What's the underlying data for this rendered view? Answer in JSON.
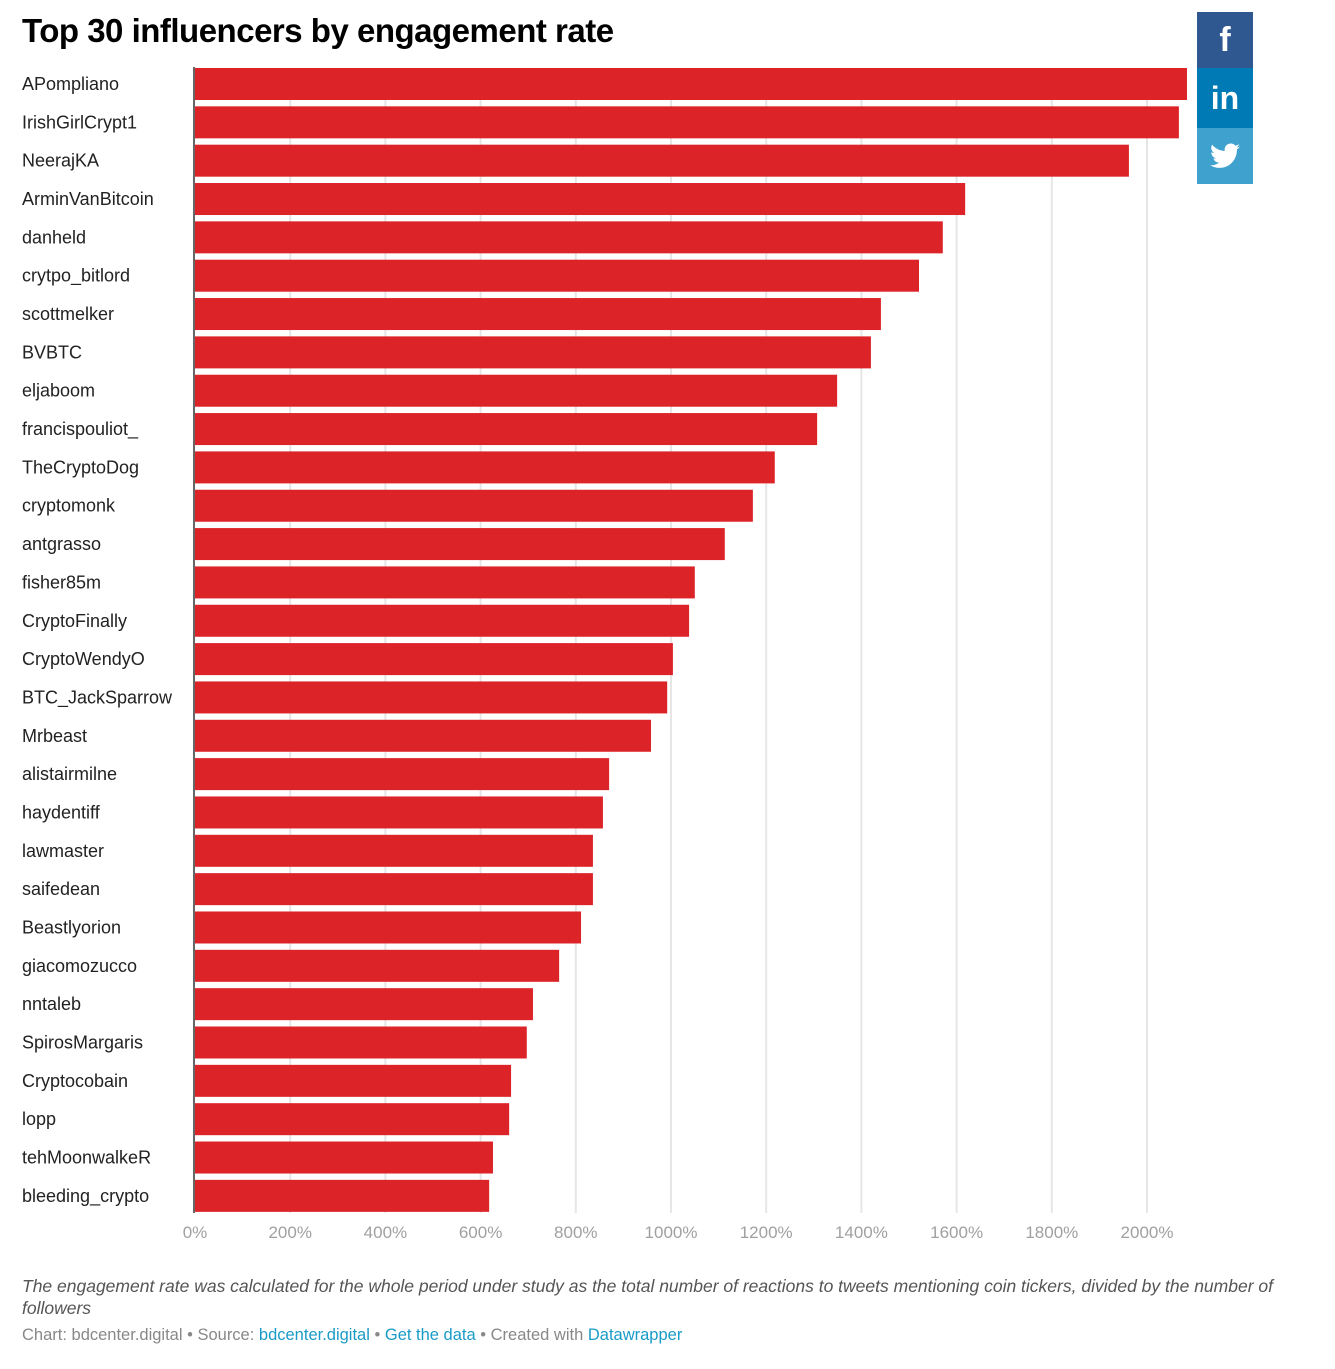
{
  "chart_data": {
    "type": "bar",
    "orientation": "horizontal",
    "title": "Top 30 influencers by engagement rate",
    "categories": [
      "APompliano",
      "IrishGirlCrypt1",
      "NeerajKA",
      "ArminVanBitcoin",
      "danheld",
      "crytpo_bitlord",
      "scottmelker",
      "BVBTC",
      "eljaboom",
      "francispouliot_",
      "TheCryptoDog",
      "cryptomonk",
      "antgrasso",
      "fisher85m",
      "CryptoFinally",
      "CryptoWendyO",
      "BTC_JackSparrow",
      "Mrbeast",
      "alistairmilne",
      "haydentiff",
      "lawmaster",
      "saifedean",
      "Beastlyorion",
      "giacomozucco",
      "nntaleb",
      "SpirosMargaris",
      "Cryptocobain",
      "lopp",
      "tehMoonwalkeR",
      "bleeding_crypto"
    ],
    "values": [
      2084,
      2067,
      1962,
      1618,
      1571,
      1521,
      1441,
      1420,
      1349,
      1307,
      1218,
      1172,
      1113,
      1050,
      1038,
      1004,
      992,
      958,
      870,
      857,
      836,
      836,
      811,
      765,
      710,
      697,
      664,
      660,
      626,
      618
    ],
    "unit": "%",
    "xlim": [
      0,
      2100
    ],
    "ticks": [
      "0%",
      "200%",
      "400%",
      "600%",
      "800%",
      "1000%",
      "1200%",
      "1400%",
      "1600%",
      "1800%",
      "2000%"
    ],
    "tick_values": [
      0,
      200,
      400,
      600,
      800,
      1000,
      1200,
      1400,
      1600,
      1800,
      2000
    ],
    "grid": true,
    "bar_color": "#dc2328",
    "grid_color": "#e6e6e6"
  },
  "note": "The engagement rate was calculated for the whole period under study as the total number of reactions to tweets mentioning coin tickers, divided by the number of followers",
  "footer": {
    "chart_prefix": "Chart: bdcenter.digital • Source: ",
    "source_link": "bdcenter.digital",
    "sep1": " • ",
    "get_data": "Get the data",
    "sep2": " • Created with ",
    "datawrapper": "Datawrapper"
  },
  "share": {
    "facebook": {
      "icon": "facebook-icon",
      "glyph": "f",
      "color": "#2f5891"
    },
    "linkedin": {
      "icon": "linkedin-icon",
      "glyph": "in",
      "color": "#007ab5"
    },
    "twitter": {
      "icon": "twitter-icon",
      "color": "#3fa1cd"
    }
  }
}
